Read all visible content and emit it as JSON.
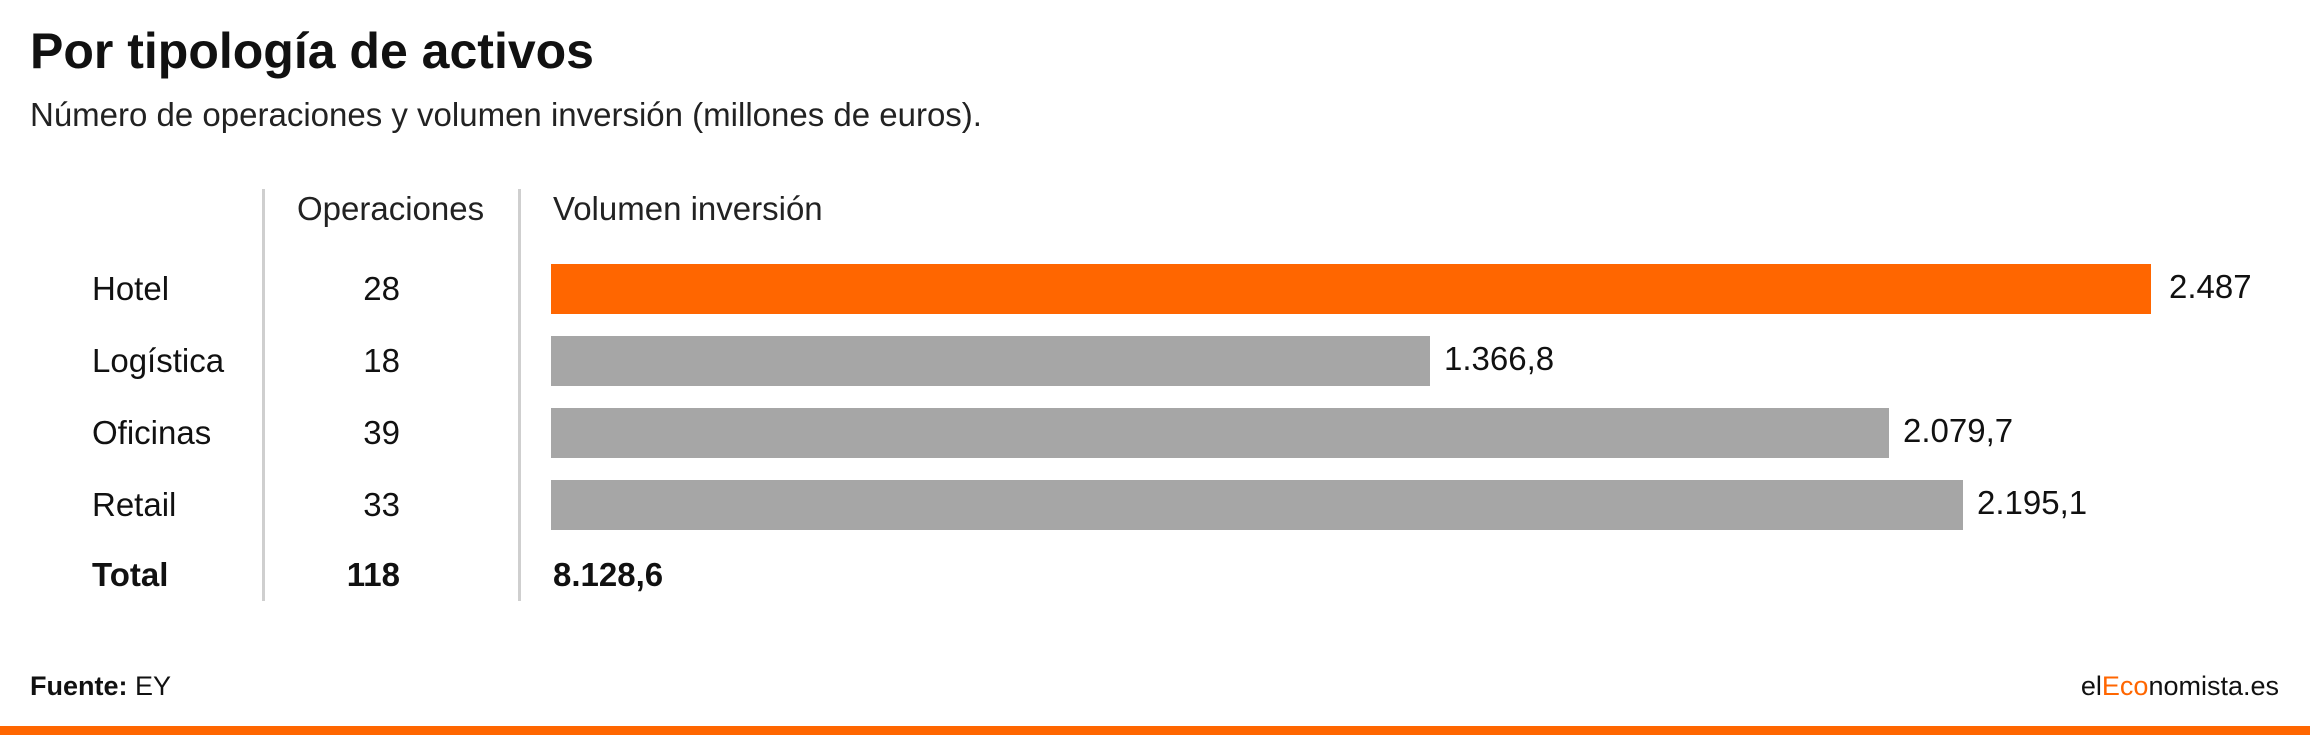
{
  "header": {
    "title": "Por tipología de activos",
    "subtitle": "Número de operaciones y volumen inversión (millones de euros)."
  },
  "columns": {
    "operaciones": "Operaciones",
    "volumen": "Volumen inversión"
  },
  "chart_data": {
    "type": "bar",
    "title": "Por tipología de activos",
    "subtitle": "Número de operaciones y volumen inversión (millones de euros).",
    "categories": [
      "Hotel",
      "Logística",
      "Oficinas",
      "Retail"
    ],
    "operaciones": [
      "28",
      "18",
      "39",
      "33"
    ],
    "values": [
      2487,
      1366.8,
      2079.7,
      2195.1
    ],
    "value_labels": [
      "2.487",
      "1.366,8",
      "2.079,7",
      "2.195,1"
    ],
    "colors": [
      "#ff6600",
      "#a6a6a6",
      "#a6a6a6",
      "#a6a6a6"
    ],
    "xlim": [
      0,
      2487
    ],
    "orientation": "horizontal",
    "total": {
      "label": "Total",
      "operaciones": "118",
      "volumen": "8.128,6"
    }
  },
  "footer": {
    "source_label": "Fuente:",
    "source_value": " EY",
    "brand_prefix": "el",
    "brand_highlight": "Eco",
    "brand_suffix": "nomista.es",
    "brand_color": "#ff6600"
  }
}
